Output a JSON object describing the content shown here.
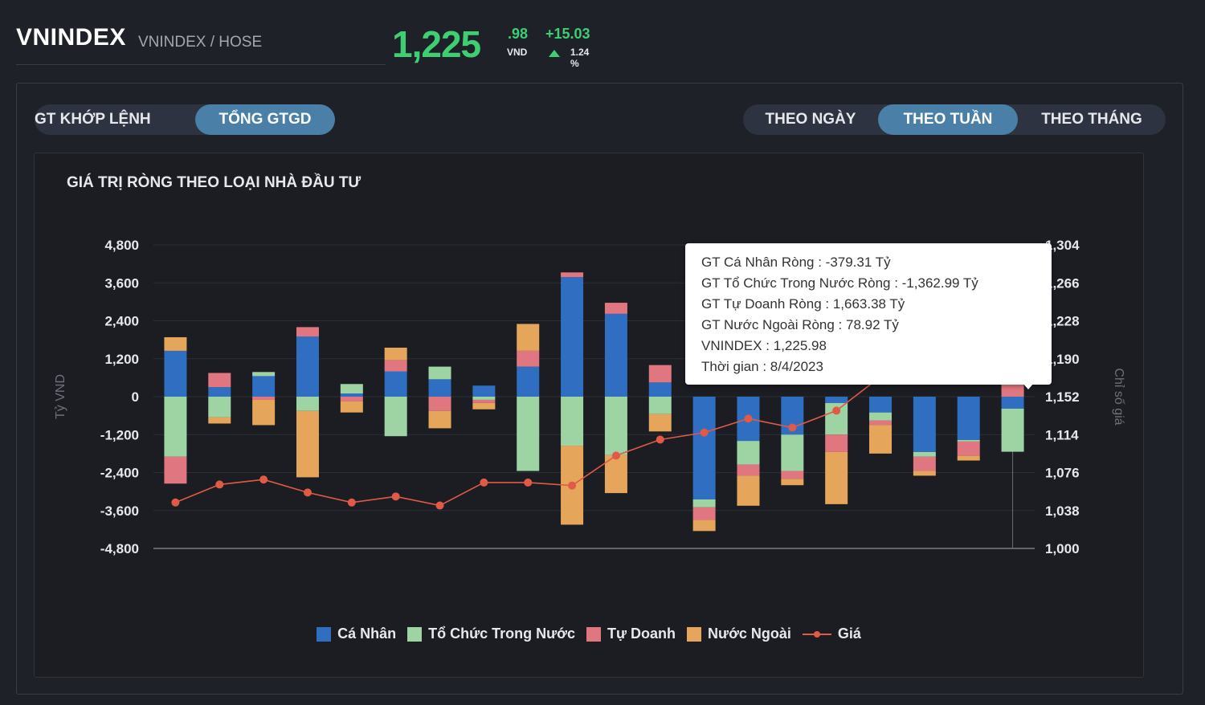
{
  "header": {
    "ticker": "VNINDEX",
    "exchange": "VNINDEX / HOSE"
  },
  "price": {
    "main": "1,225",
    "decimal": ".98",
    "unit": "VND",
    "change": "+15.03",
    "percent": "1.24 %"
  },
  "value_tabs": [
    {
      "label": "GT KHỚP LỆNH",
      "active": false
    },
    {
      "label": "TỔNG GTGD",
      "active": true
    }
  ],
  "period_tabs": [
    {
      "label": "THEO NGÀY",
      "active": false
    },
    {
      "label": "THEO TUẦN",
      "active": true
    },
    {
      "label": "THEO THÁNG",
      "active": false
    }
  ],
  "chart_title": "GIÁ TRỊ RÒNG THEO LOẠI NHÀ ĐẦU TƯ",
  "tooltip": {
    "lines": [
      "GT Cá Nhân Ròng  : -379.31 Tỷ",
      "GT Tổ Chức Trong Nước Ròng : -1,362.99 Tỷ",
      "GT Tự Doanh Ròng : 1,663.38 Tỷ",
      "GT Nước Ngoài Ròng : 78.92 Tỷ",
      "VNINDEX : 1,225.98",
      "Thời gian : 8/4/2023"
    ]
  },
  "colors": {
    "ca_nhan": "#2f6ec0",
    "to_chuc": "#9ed3a4",
    "tu_doanh": "#e07680",
    "nuoc_ngoai": "#e5a55a",
    "gia": "#e05a47",
    "accent": "#4a7fa8",
    "up": "#3ecf72"
  },
  "chart_data": {
    "type": "bar",
    "stacked": true,
    "ylabel": "Tỷ VND",
    "y2label": "Chỉ số giá",
    "ylim": [
      -4800,
      4800
    ],
    "y2lim": [
      1000,
      1304
    ],
    "yticks": [
      "4,800",
      "3,600",
      "2,400",
      "1,200",
      "0",
      "-1,200",
      "-2,400",
      "-3,600",
      "-4,800"
    ],
    "y2ticks": [
      "1,304",
      "1,266",
      "1,228",
      "1,190",
      "1,152",
      "1,114",
      "1,076",
      "1,038",
      "1,000"
    ],
    "legend_position": "bottom",
    "series": [
      {
        "name": "Cá Nhân",
        "values": [
          1450,
          300,
          650,
          1900,
          100,
          800,
          550,
          350,
          950,
          3780,
          2620,
          450,
          -3250,
          -1400,
          -1200,
          -200,
          -500,
          -1750,
          -1370,
          -379
        ]
      },
      {
        "name": "Tổ Chức Trong Nước",
        "values": [
          -1900,
          -650,
          130,
          -450,
          300,
          -1250,
          400,
          -100,
          -2350,
          -1550,
          -1850,
          -550,
          -250,
          -750,
          -1150,
          -1000,
          -250,
          -150,
          -50,
          -1363
        ]
      },
      {
        "name": "Tự Doanh",
        "values": [
          -850,
          450,
          -100,
          300,
          -150,
          350,
          -450,
          -100,
          500,
          150,
          350,
          550,
          -400,
          -350,
          -250,
          -550,
          -150,
          -450,
          -450,
          1663
        ]
      },
      {
        "name": "Nước Ngoài",
        "values": [
          430,
          -200,
          -800,
          -2100,
          -350,
          400,
          -550,
          -200,
          850,
          -2500,
          -1200,
          -550,
          -350,
          -950,
          -200,
          -1650,
          -900,
          -150,
          -150,
          79
        ]
      },
      {
        "name": "Giá",
        "values": [
          1046,
          1064,
          1069,
          1056,
          1046,
          1052,
          1043,
          1066,
          1066,
          1063,
          1093,
          1109,
          1116,
          1130,
          1121,
          1138,
          1172,
          1192,
          1210,
          1226
        ]
      }
    ]
  },
  "legend": [
    "Cá Nhân",
    "Tổ Chức Trong Nước",
    "Tự Doanh",
    "Nước Ngoài",
    "Giá"
  ]
}
